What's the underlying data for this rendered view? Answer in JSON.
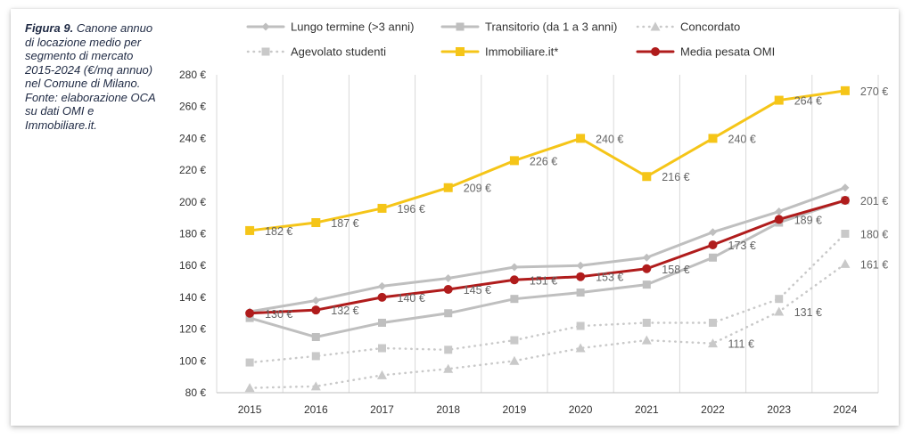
{
  "caption": {
    "label": "Figura 9.",
    "text": "Canone annuo di locazione medio per segmento di mercato 2015-2024 (€/mq annuo) nel Comune di Milano. Fonte: elaborazione OCA su dati OMI e Immobiliare.it."
  },
  "chart_data": {
    "type": "line",
    "x": [
      "2015",
      "2016",
      "2017",
      "2018",
      "2019",
      "2020",
      "2021",
      "2022",
      "2023",
      "2024"
    ],
    "ylim": [
      80,
      280
    ],
    "y_ticks": [
      "80 €",
      "100 €",
      "120 €",
      "140 €",
      "160 €",
      "180 €",
      "200 €",
      "220 €",
      "240 €",
      "260 €",
      "280 €"
    ],
    "y_tick_values": [
      80,
      100,
      120,
      140,
      160,
      180,
      200,
      220,
      240,
      260,
      280
    ],
    "grid": "vertical",
    "legend_position": "top",
    "series": [
      {
        "name": "Lungo termine (>3 anni)",
        "color": "#bfbfbf",
        "dash": "solid",
        "marker": "diamond",
        "values": [
          131,
          138,
          147,
          152,
          159,
          160,
          165,
          181,
          194,
          209
        ]
      },
      {
        "name": "Transitorio (da 1 a 3 anni)",
        "color": "#bfbfbf",
        "dash": "solid",
        "marker": "square",
        "values": [
          127,
          115,
          124,
          130,
          139,
          143,
          148,
          165,
          187,
          201
        ]
      },
      {
        "name": "Concordato",
        "color": "#c9c9c9",
        "dash": "dotted",
        "marker": "triangle",
        "values": [
          83,
          84,
          91,
          95,
          100,
          108,
          113,
          111,
          131,
          161
        ]
      },
      {
        "name": "Agevolato studenti",
        "color": "#c9c9c9",
        "dash": "dotted",
        "marker": "square",
        "values": [
          99,
          103,
          108,
          107,
          113,
          122,
          124,
          124,
          139,
          180
        ]
      },
      {
        "name": "Immobiliare.it*",
        "color": "#f5c518",
        "dash": "solid",
        "marker": "square",
        "values": [
          182,
          187,
          196,
          209,
          226,
          240,
          216,
          240,
          264,
          270
        ]
      },
      {
        "name": "Media pesata OMI",
        "color": "#b01c1c",
        "dash": "solid",
        "marker": "circle",
        "values": [
          130,
          132,
          140,
          145,
          151,
          153,
          158,
          173,
          189,
          201
        ]
      }
    ],
    "data_labels": [
      {
        "series": "Immobiliare.it*",
        "x": "2015",
        "text": "182 €"
      },
      {
        "series": "Immobiliare.it*",
        "x": "2016",
        "text": "187 €"
      },
      {
        "series": "Immobiliare.it*",
        "x": "2017",
        "text": "196 €"
      },
      {
        "series": "Immobiliare.it*",
        "x": "2018",
        "text": "209 €"
      },
      {
        "series": "Immobiliare.it*",
        "x": "2019",
        "text": "226 €"
      },
      {
        "series": "Immobiliare.it*",
        "x": "2020",
        "text": "240 €"
      },
      {
        "series": "Immobiliare.it*",
        "x": "2021",
        "text": "216 €"
      },
      {
        "series": "Immobiliare.it*",
        "x": "2022",
        "text": "240 €"
      },
      {
        "series": "Immobiliare.it*",
        "x": "2023",
        "text": "264 €"
      },
      {
        "series": "Immobiliare.it*",
        "x": "2024",
        "text": "270 €"
      },
      {
        "series": "Media pesata OMI",
        "x": "2015",
        "text": "130 €"
      },
      {
        "series": "Media pesata OMI",
        "x": "2016",
        "text": "132 €"
      },
      {
        "series": "Media pesata OMI",
        "x": "2017",
        "text": "140 €"
      },
      {
        "series": "Media pesata OMI",
        "x": "2018",
        "text": "145 €"
      },
      {
        "series": "Media pesata OMI",
        "x": "2019",
        "text": "151 €"
      },
      {
        "series": "Media pesata OMI",
        "x": "2020",
        "text": "153 €"
      },
      {
        "series": "Media pesata OMI",
        "x": "2021",
        "text": "158 €"
      },
      {
        "series": "Media pesata OMI",
        "x": "2022",
        "text": "173 €"
      },
      {
        "series": "Media pesata OMI",
        "x": "2023",
        "text": "189 €"
      },
      {
        "series": "Media pesata OMI",
        "x": "2024",
        "text": "201 €"
      },
      {
        "series": "Agevolato studenti",
        "x": "2024",
        "text": "180 €"
      },
      {
        "series": "Concordato",
        "x": "2024",
        "text": "161 €"
      },
      {
        "series": "Concordato",
        "x": "2023",
        "text": "131 €"
      },
      {
        "series": "Concordato",
        "x": "2022",
        "text": "111 €"
      }
    ]
  }
}
